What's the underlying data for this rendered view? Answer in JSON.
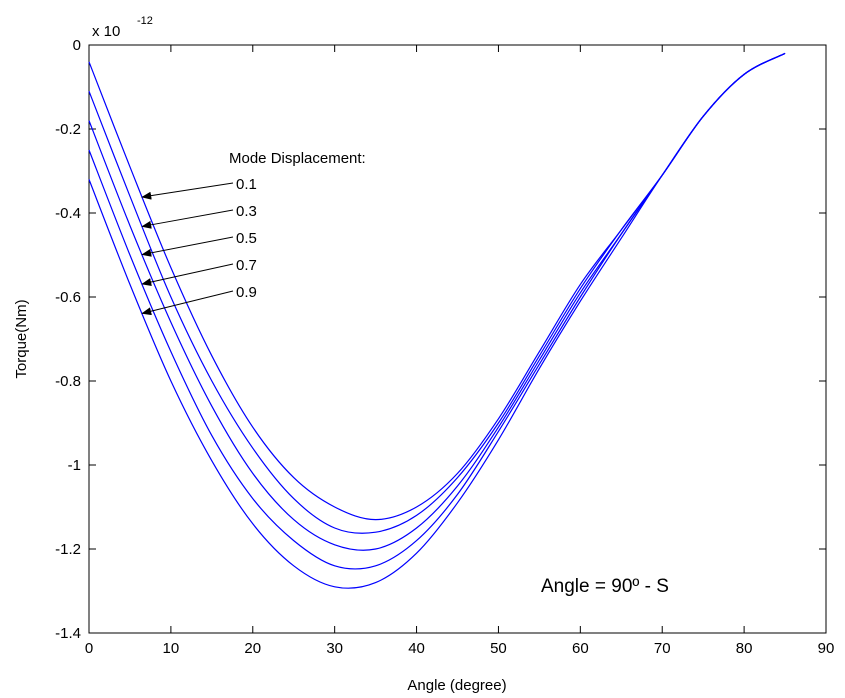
{
  "chart_data": {
    "type": "line",
    "title": "",
    "xlabel": "Angle (degree)",
    "ylabel": "Torque(Nm)",
    "exponent_label": {
      "base": "x 10",
      "power": "-12"
    },
    "xlim": [
      0,
      90
    ],
    "ylim": [
      -1.4,
      0
    ],
    "xticks": [
      "0",
      "10",
      "20",
      "30",
      "40",
      "50",
      "60",
      "70",
      "80",
      "90"
    ],
    "yticks": [
      "0",
      "-0.2",
      "-0.4",
      "-0.6",
      "-0.8",
      "-1",
      "-1.2",
      "-1.4"
    ],
    "grid": false,
    "line_color": "#0000ff",
    "annotation_title": "Mode Displacement:",
    "series": [
      {
        "name": "0.1",
        "x": [
          0,
          5,
          10,
          15,
          20,
          25,
          30,
          35,
          40,
          45,
          50,
          55,
          60,
          65,
          70,
          75,
          80,
          85
        ],
        "values": [
          -0.04,
          -0.29,
          -0.53,
          -0.74,
          -0.91,
          -1.03,
          -1.1,
          -1.13,
          -1.1,
          -1.02,
          -0.89,
          -0.73,
          -0.57,
          -0.44,
          -0.31,
          -0.17,
          -0.07,
          -0.02
        ]
      },
      {
        "name": "0.3",
        "x": [
          0,
          5,
          10,
          15,
          20,
          25,
          30,
          35,
          40,
          45,
          50,
          55,
          60,
          65,
          70,
          75,
          80,
          85
        ],
        "values": [
          -0.11,
          -0.36,
          -0.6,
          -0.8,
          -0.96,
          -1.08,
          -1.15,
          -1.16,
          -1.12,
          -1.03,
          -0.9,
          -0.74,
          -0.58,
          -0.44,
          -0.31,
          -0.17,
          -0.07,
          -0.02
        ]
      },
      {
        "name": "0.5",
        "x": [
          0,
          5,
          10,
          15,
          20,
          25,
          30,
          35,
          40,
          45,
          50,
          55,
          60,
          65,
          70,
          75,
          80,
          85
        ],
        "values": [
          -0.18,
          -0.43,
          -0.66,
          -0.86,
          -1.02,
          -1.13,
          -1.19,
          -1.2,
          -1.15,
          -1.05,
          -0.91,
          -0.75,
          -0.59,
          -0.45,
          -0.31,
          -0.17,
          -0.07,
          -0.02
        ]
      },
      {
        "name": "0.7",
        "x": [
          0,
          5,
          10,
          15,
          20,
          25,
          30,
          35,
          40,
          45,
          50,
          55,
          60,
          65,
          70,
          75,
          80,
          85
        ],
        "values": [
          -0.25,
          -0.5,
          -0.73,
          -0.93,
          -1.08,
          -1.18,
          -1.24,
          -1.24,
          -1.18,
          -1.07,
          -0.92,
          -0.76,
          -0.6,
          -0.45,
          -0.31,
          -0.17,
          -0.07,
          -0.02
        ]
      },
      {
        "name": "0.9",
        "x": [
          0,
          5,
          10,
          15,
          20,
          25,
          30,
          35,
          40,
          45,
          50,
          55,
          60,
          65,
          70,
          75,
          80,
          85
        ],
        "values": [
          -0.32,
          -0.57,
          -0.8,
          -0.99,
          -1.14,
          -1.24,
          -1.29,
          -1.28,
          -1.21,
          -1.09,
          -0.94,
          -0.77,
          -0.61,
          -0.46,
          -0.31,
          -0.17,
          -0.07,
          -0.02
        ]
      }
    ],
    "annotations": [
      {
        "text": "Angle = 90º - S",
        "x": 55,
        "y": -1.28
      }
    ]
  }
}
